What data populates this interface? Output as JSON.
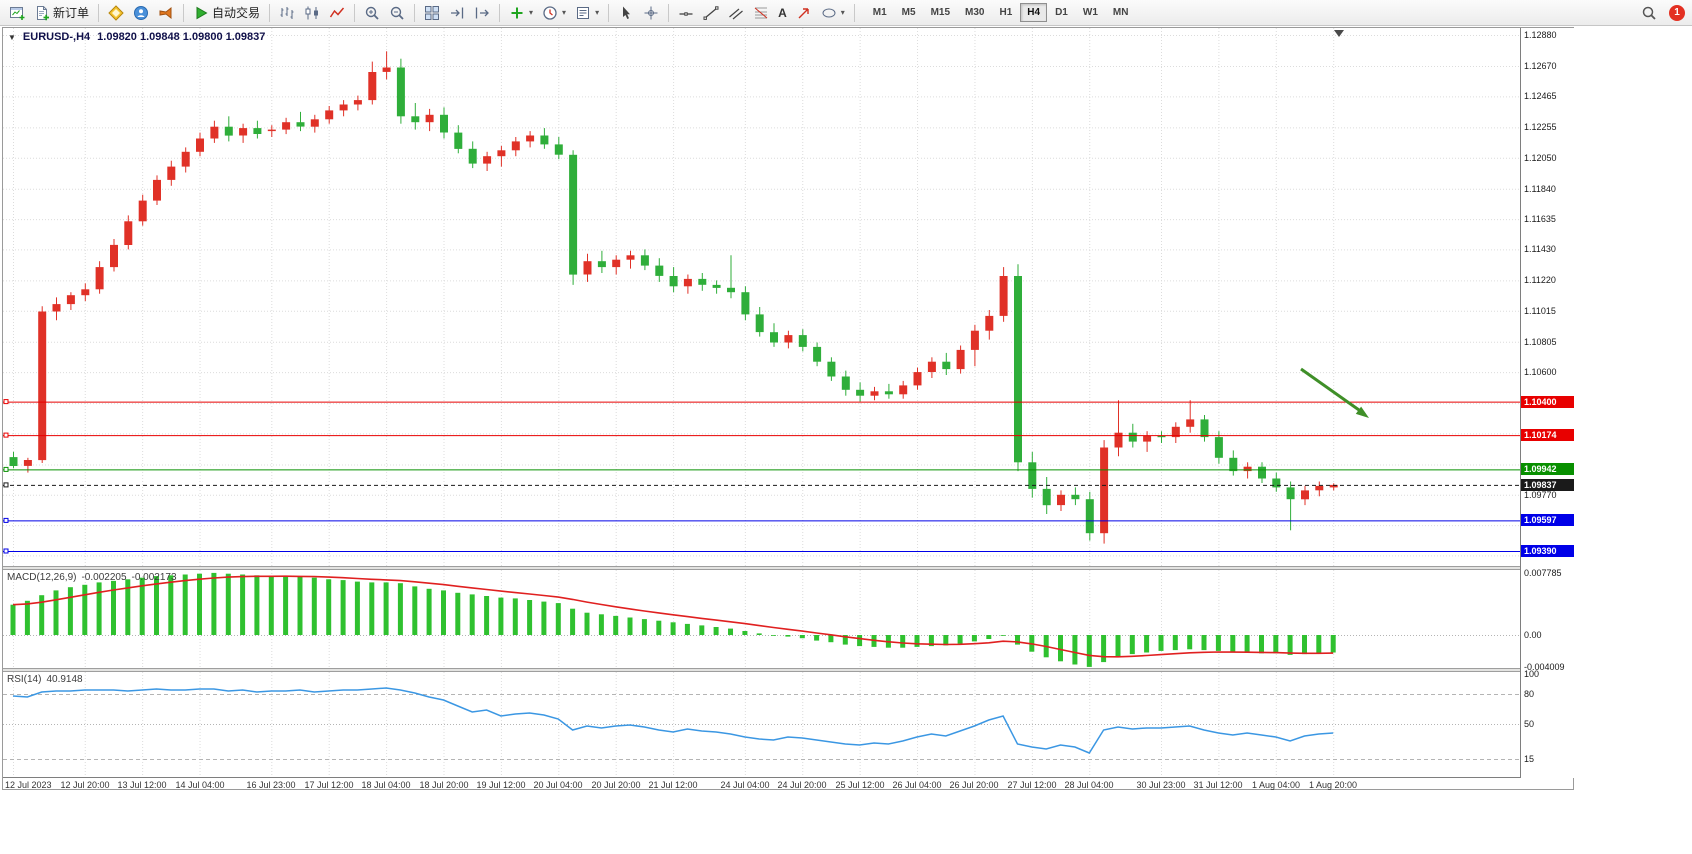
{
  "toolbar": {
    "new_order_label": "新订单",
    "autotrading_label": "自动交易",
    "text_tool_label": "A",
    "timeframes": [
      "M1",
      "M5",
      "M15",
      "M30",
      "H1",
      "H4",
      "D1",
      "W1",
      "MN"
    ],
    "active_timeframe": "H4",
    "notification_count": "1",
    "icon_buttons": [
      "new-chart",
      "new-order",
      "metaeditor",
      "community",
      "news",
      "autotrading",
      "bar-chart",
      "candlestick-chart",
      "line-chart",
      "zoom-in",
      "zoom-out",
      "tile-windows",
      "auto-scroll",
      "chart-shift",
      "indicators",
      "periods",
      "templates",
      "cursor",
      "crosshair",
      "horizontal-line",
      "trendline",
      "channel",
      "fibonacci",
      "text",
      "arrow",
      "shapes",
      "search",
      "notification"
    ]
  },
  "chart": {
    "header_symbol": "EURUSD-,H4",
    "header_ohlc": "1.09820 1.09848 1.09800 1.09837",
    "one_click_caret": "▼"
  },
  "chart_data": {
    "type": "candlestick",
    "symbol": "EURUSD-",
    "timeframe": "H4",
    "colors": {
      "up": "#e03127",
      "down": "#2fae3a",
      "macd_hist": "#2fc12f",
      "macd_signal": "#e02020",
      "rsi_line": "#3b97e3",
      "grid": "#dcdcdc",
      "arrow": "#3f8f28"
    },
    "price_axis_labels": [
      "1.12880",
      "1.12670",
      "1.12465",
      "1.12255",
      "1.12050",
      "1.11840",
      "1.11635",
      "1.11430",
      "1.11220",
      "1.11015",
      "1.10805",
      "1.10600",
      "1.09770"
    ],
    "price_gridlines": [
      1.1288,
      1.1267,
      1.12465,
      1.12255,
      1.1205,
      1.1184,
      1.11635,
      1.1143,
      1.1122,
      1.11015,
      1.10805,
      1.106,
      1.1039,
      1.10185,
      1.09975,
      1.0977,
      1.09565,
      1.0936
    ],
    "hlines": [
      {
        "value": "1.10400",
        "color": "#e80000",
        "dash": false
      },
      {
        "value": "1.10174",
        "color": "#e80000",
        "dash": false
      },
      {
        "value": "1.09942",
        "color": "#089000",
        "dash": false
      },
      {
        "value": "1.09837",
        "color": "#1a1a1a",
        "dash": true
      },
      {
        "value": "1.09597",
        "color": "#0000e8",
        "dash": false
      },
      {
        "value": "1.09390",
        "color": "#0000e8",
        "dash": false
      }
    ],
    "x_axis_labels": [
      {
        "i": 0,
        "t": "12 Jul 2023"
      },
      {
        "i": 5,
        "t": "12 Jul 20:00"
      },
      {
        "i": 9,
        "t": "13 Jul 12:00"
      },
      {
        "i": 13,
        "t": "14 Jul 04:00"
      },
      {
        "i": 18,
        "t": "16 Jul 23:00"
      },
      {
        "i": 22,
        "t": "17 Jul 12:00"
      },
      {
        "i": 26,
        "t": "18 Jul 04:00"
      },
      {
        "i": 30,
        "t": "18 Jul 20:00"
      },
      {
        "i": 34,
        "t": "19 Jul 12:00"
      },
      {
        "i": 38,
        "t": "20 Jul 04:00"
      },
      {
        "i": 42,
        "t": "20 Jul 20:00"
      },
      {
        "i": 46,
        "t": "21 Jul 12:00"
      },
      {
        "i": 51,
        "t": "24 Jul 04:00"
      },
      {
        "i": 55,
        "t": "24 Jul 20:00"
      },
      {
        "i": 59,
        "t": "25 Jul 12:00"
      },
      {
        "i": 63,
        "t": "26 Jul 04:00"
      },
      {
        "i": 67,
        "t": "26 Jul 20:00"
      },
      {
        "i": 71,
        "t": "27 Jul 12:00"
      },
      {
        "i": 75,
        "t": "28 Jul 04:00"
      },
      {
        "i": 80,
        "t": "30 Jul 23:00"
      },
      {
        "i": 84,
        "t": "31 Jul 12:00"
      },
      {
        "i": 88,
        "t": "1 Aug 04:00"
      },
      {
        "i": 92,
        "t": "1 Aug 20:00"
      }
    ],
    "candles_ohlc": [
      [
        1.10025,
        1.1006,
        1.0995,
        1.09965
      ],
      [
        1.09965,
        1.1002,
        1.0992,
        1.10005
      ],
      [
        1.10005,
        1.11045,
        1.09985,
        1.1101
      ],
      [
        1.1101,
        1.11105,
        1.1095,
        1.1106
      ],
      [
        1.1106,
        1.1114,
        1.1102,
        1.1112
      ],
      [
        1.1112,
        1.112,
        1.1108,
        1.1116
      ],
      [
        1.1116,
        1.1135,
        1.1113,
        1.1131
      ],
      [
        1.1131,
        1.115,
        1.1128,
        1.1146
      ],
      [
        1.1146,
        1.1166,
        1.1143,
        1.1162
      ],
      [
        1.1162,
        1.118,
        1.1159,
        1.1176
      ],
      [
        1.1176,
        1.1193,
        1.1173,
        1.119
      ],
      [
        1.119,
        1.1203,
        1.1186,
        1.1199
      ],
      [
        1.1199,
        1.1212,
        1.1195,
        1.1209
      ],
      [
        1.1209,
        1.1222,
        1.1206,
        1.1218
      ],
      [
        1.1218,
        1.123,
        1.1215,
        1.1226
      ],
      [
        1.1226,
        1.1233,
        1.1216,
        1.122
      ],
      [
        1.122,
        1.1228,
        1.1215,
        1.1225
      ],
      [
        1.1225,
        1.123,
        1.1218,
        1.1221
      ],
      [
        1.1223,
        1.1227,
        1.1219,
        1.1224
      ],
      [
        1.1224,
        1.1232,
        1.1221,
        1.1229
      ],
      [
        1.1229,
        1.1236,
        1.1223,
        1.1226
      ],
      [
        1.1226,
        1.1234,
        1.1222,
        1.1231
      ],
      [
        1.1231,
        1.124,
        1.1228,
        1.1237
      ],
      [
        1.1237,
        1.1244,
        1.1233,
        1.1241
      ],
      [
        1.1241,
        1.1247,
        1.1237,
        1.1244
      ],
      [
        1.1244,
        1.127,
        1.1241,
        1.1263
      ],
      [
        1.1263,
        1.1277,
        1.1258,
        1.1266
      ],
      [
        1.1266,
        1.1272,
        1.1228,
        1.1233
      ],
      [
        1.1233,
        1.1242,
        1.1224,
        1.1229
      ],
      [
        1.1229,
        1.1238,
        1.1223,
        1.1234
      ],
      [
        1.1234,
        1.1239,
        1.1218,
        1.1222
      ],
      [
        1.1222,
        1.1227,
        1.1208,
        1.1211
      ],
      [
        1.1211,
        1.1216,
        1.1198,
        1.1201
      ],
      [
        1.1201,
        1.1209,
        1.1196,
        1.1206
      ],
      [
        1.1206,
        1.1213,
        1.1199,
        1.121
      ],
      [
        1.121,
        1.1219,
        1.1206,
        1.1216
      ],
      [
        1.1216,
        1.1223,
        1.1212,
        1.122
      ],
      [
        1.122,
        1.1225,
        1.1211,
        1.1214
      ],
      [
        1.1214,
        1.1219,
        1.1204,
        1.1207
      ],
      [
        1.1207,
        1.121,
        1.1119,
        1.1126
      ],
      [
        1.1126,
        1.114,
        1.1121,
        1.1135
      ],
      [
        1.1135,
        1.1142,
        1.1127,
        1.1131
      ],
      [
        1.1131,
        1.1139,
        1.1126,
        1.1136
      ],
      [
        1.1136,
        1.1142,
        1.113,
        1.1139
      ],
      [
        1.1139,
        1.1143,
        1.1129,
        1.1132
      ],
      [
        1.1132,
        1.1137,
        1.1121,
        1.1125
      ],
      [
        1.1125,
        1.1131,
        1.1114,
        1.1118
      ],
      [
        1.1118,
        1.1126,
        1.1113,
        1.1123
      ],
      [
        1.1123,
        1.1127,
        1.1115,
        1.1119
      ],
      [
        1.1119,
        1.1122,
        1.1113,
        1.1117
      ],
      [
        1.1117,
        1.1139,
        1.111,
        1.1114
      ],
      [
        1.1114,
        1.1118,
        1.1095,
        1.1099
      ],
      [
        1.1099,
        1.1104,
        1.1084,
        1.1087
      ],
      [
        1.1087,
        1.1093,
        1.1077,
        1.108
      ],
      [
        1.108,
        1.1088,
        1.1076,
        1.1085
      ],
      [
        1.1085,
        1.1089,
        1.1074,
        1.1077
      ],
      [
        1.1077,
        1.108,
        1.1064,
        1.1067
      ],
      [
        1.1067,
        1.107,
        1.1054,
        1.1057
      ],
      [
        1.1057,
        1.1061,
        1.1044,
        1.1048
      ],
      [
        1.1048,
        1.1053,
        1.104,
        1.1044
      ],
      [
        1.1044,
        1.105,
        1.1041,
        1.1047
      ],
      [
        1.1047,
        1.1052,
        1.1042,
        1.1045
      ],
      [
        1.1045,
        1.1054,
        1.1042,
        1.1051
      ],
      [
        1.1051,
        1.1063,
        1.1048,
        1.106
      ],
      [
        1.106,
        1.107,
        1.1056,
        1.1067
      ],
      [
        1.1067,
        1.1073,
        1.1058,
        1.1062
      ],
      [
        1.1062,
        1.1078,
        1.1059,
        1.1075
      ],
      [
        1.1075,
        1.1092,
        1.1064,
        1.1088
      ],
      [
        1.1088,
        1.1102,
        1.1082,
        1.1098
      ],
      [
        1.1098,
        1.1131,
        1.1094,
        1.1125
      ],
      [
        1.1125,
        1.1133,
        1.0993,
        1.0999
      ],
      [
        1.0999,
        1.1006,
        1.0975,
        1.0981
      ],
      [
        1.0981,
        1.0989,
        1.0964,
        1.097
      ],
      [
        1.097,
        1.098,
        1.0966,
        1.0977
      ],
      [
        1.0977,
        1.0982,
        1.097,
        1.0974
      ],
      [
        1.0974,
        1.0979,
        1.0946,
        1.0951
      ],
      [
        1.0951,
        1.1014,
        1.0944,
        1.1009
      ],
      [
        1.1009,
        1.1041,
        1.1003,
        1.1019
      ],
      [
        1.1019,
        1.1025,
        1.1009,
        1.1013
      ],
      [
        1.1013,
        1.102,
        1.1006,
        1.1017
      ],
      [
        1.1017,
        1.102,
        1.1012,
        1.1016
      ],
      [
        1.1016,
        1.1026,
        1.1012,
        1.1023
      ],
      [
        1.1023,
        1.1041,
        1.1019,
        1.1028
      ],
      [
        1.1028,
        1.1031,
        1.1013,
        1.1016
      ],
      [
        1.1016,
        1.102,
        1.0998,
        1.1002
      ],
      [
        1.1002,
        1.1007,
        1.099,
        1.0993
      ],
      [
        1.0993,
        1.0999,
        1.0988,
        1.0996
      ],
      [
        1.0996,
        1.0999,
        1.0985,
        1.0988
      ],
      [
        1.0988,
        1.0992,
        1.0979,
        1.0982
      ],
      [
        1.0982,
        1.0986,
        1.0953,
        1.0974
      ],
      [
        1.0974,
        1.0983,
        1.097,
        1.098
      ],
      [
        1.098,
        1.0986,
        1.0976,
        1.0983
      ],
      [
        1.0982,
        1.09848,
        1.098,
        1.09837
      ]
    ],
    "macd": {
      "label": "MACD(12,26,9)",
      "value_main": "-0.002205",
      "value_signal": "-0.002173",
      "axis": [
        {
          "v": 0.007785,
          "t": "0.007785"
        },
        {
          "v": 0,
          "t": "0.00"
        },
        {
          "v": -0.004009,
          "t": "-0.004009"
        }
      ],
      "main": [
        0.0038,
        0.0043,
        0.005,
        0.0056,
        0.006,
        0.0063,
        0.0066,
        0.0068,
        0.007,
        0.0072,
        0.0074,
        0.0075,
        0.0076,
        0.0077,
        0.0078,
        0.0077,
        0.0076,
        0.0075,
        0.0074,
        0.0074,
        0.0073,
        0.0072,
        0.007,
        0.0069,
        0.0067,
        0.0066,
        0.0066,
        0.0065,
        0.0061,
        0.0058,
        0.0056,
        0.0053,
        0.0051,
        0.0049,
        0.0047,
        0.0046,
        0.0044,
        0.0042,
        0.004,
        0.0033,
        0.0028,
        0.0026,
        0.0024,
        0.0022,
        0.002,
        0.0018,
        0.0016,
        0.0014,
        0.0012,
        0.001,
        0.0008,
        0.0005,
        0.0002,
        0.0,
        -0.0002,
        -0.0004,
        -0.0007,
        -0.0009,
        -0.0012,
        -0.0014,
        -0.0015,
        -0.0016,
        -0.0016,
        -0.0015,
        -0.0014,
        -0.0013,
        -0.0011,
        -0.0008,
        -0.0005,
        0.0,
        -0.0012,
        -0.0021,
        -0.0028,
        -0.0033,
        -0.0037,
        -0.004,
        -0.0034,
        -0.0028,
        -0.0024,
        -0.0022,
        -0.002,
        -0.0019,
        -0.0018,
        -0.0019,
        -0.002,
        -0.0022,
        -0.0022,
        -0.0023,
        -0.0023,
        -0.0025,
        -0.0024,
        -0.0023,
        -0.0022
      ]
    },
    "rsi": {
      "label": "RSI(14)",
      "value": "40.9148",
      "axis": [
        {
          "v": 100,
          "t": "100"
        },
        {
          "v": 80,
          "t": "80"
        },
        {
          "v": 50,
          "t": "50"
        },
        {
          "v": 15,
          "t": "15"
        }
      ],
      "levels": [
        80,
        50,
        15
      ],
      "values": [
        78,
        77,
        82,
        83,
        83,
        84,
        84,
        84,
        83,
        84,
        85,
        84,
        84,
        85,
        85,
        83,
        84,
        82,
        83,
        83,
        84,
        82,
        83,
        84,
        84,
        85,
        86,
        84,
        81,
        77,
        74,
        68,
        62,
        64,
        58,
        60,
        61,
        59,
        55,
        44,
        48,
        46,
        48,
        49,
        47,
        44,
        42,
        45,
        43,
        42,
        40,
        37,
        35,
        34,
        37,
        36,
        34,
        32,
        30,
        29,
        31,
        30,
        33,
        37,
        40,
        38,
        43,
        48,
        54,
        58,
        30,
        27,
        25,
        29,
        27,
        21,
        44,
        47,
        45,
        46,
        46,
        47,
        48,
        44,
        41,
        39,
        41,
        39,
        37,
        33,
        38,
        40,
        41
      ]
    }
  }
}
